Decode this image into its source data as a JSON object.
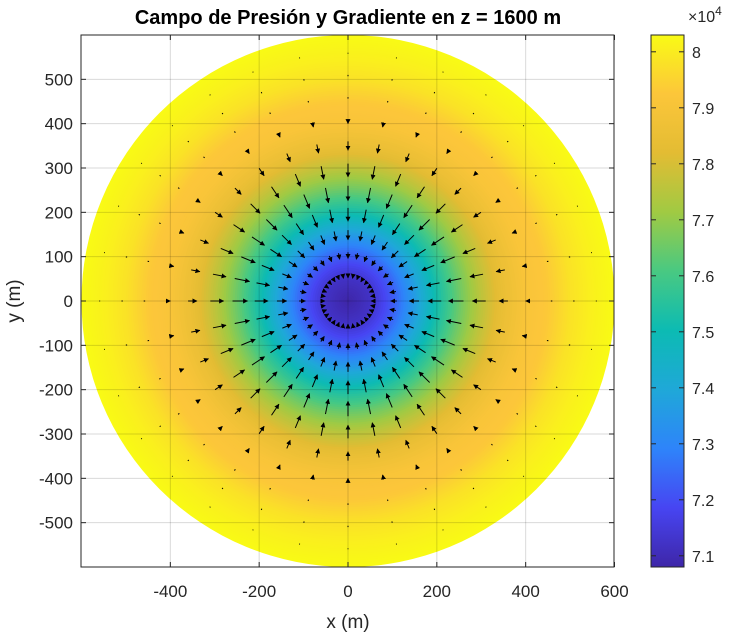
{
  "chart_data": {
    "type": "heatmap",
    "subtype": "filled contour with quiver overlay (circular domain)",
    "title": "Campo de Presión y Gradiente en z = 1600 m",
    "xlabel": "x (m)",
    "ylabel": "y (m)",
    "xlim": [
      -600,
      600
    ],
    "ylim": [
      -600,
      600
    ],
    "xticks": [
      -400,
      -200,
      0,
      200,
      400,
      600
    ],
    "yticks": [
      500,
      400,
      300,
      200,
      100,
      0,
      -100,
      -200,
      -300,
      -400,
      -500
    ],
    "x_tick_labels": [
      "-400",
      "-200",
      "0",
      "200",
      "400",
      "600"
    ],
    "y_tick_labels": [
      "500",
      "400",
      "300",
      "200",
      "100",
      "0",
      "-100",
      "-200",
      "-300",
      "-400",
      "-500"
    ],
    "grid": true,
    "domain_radius": 600,
    "colorbar": {
      "multiplier": "×10",
      "exponent": "4",
      "limits": [
        7.08,
        8.03
      ],
      "ticks": [
        7.1,
        7.2,
        7.3,
        7.4,
        7.5,
        7.6,
        7.7,
        7.8,
        7.9,
        8.0
      ],
      "tick_labels": [
        "7.1",
        "7.2",
        "7.3",
        "7.4",
        "7.5",
        "7.6",
        "7.7",
        "7.8",
        "7.9",
        "8"
      ],
      "colormap": "parula",
      "stops": [
        "#3e26a8",
        "#4745f2",
        "#2e84fa",
        "#1fa8d8",
        "#0cbbb3",
        "#48c982",
        "#a0ca43",
        "#e3bc33",
        "#fcc63a",
        "#f9fb15"
      ]
    },
    "pressure_profile": {
      "r": [
        0,
        50,
        100,
        150,
        200,
        250,
        300,
        350,
        400,
        450,
        500,
        550,
        600
      ],
      "p": [
        7.08,
        7.12,
        7.22,
        7.36,
        7.52,
        7.65,
        7.76,
        7.85,
        7.91,
        7.93,
        7.98,
        8.01,
        8.03
      ]
    },
    "quiver": {
      "direction": "inward (toward center)",
      "rays": 32,
      "radii": [
        60,
        110,
        160,
        210,
        260,
        310,
        360,
        410,
        460,
        510,
        560
      ],
      "vector_lengths": [
        8,
        14,
        22,
        30,
        34,
        30,
        20,
        10,
        5,
        3,
        2
      ]
    }
  }
}
